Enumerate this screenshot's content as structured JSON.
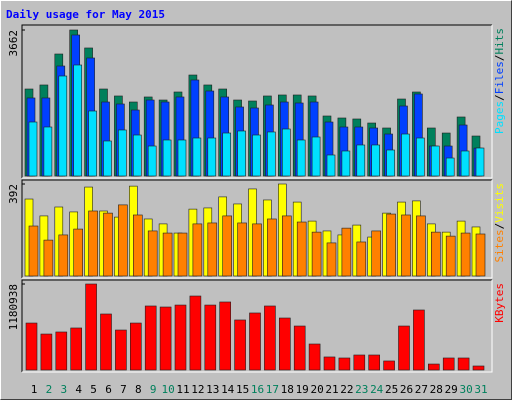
{
  "title": "Daily usage for May 2015",
  "separator": "/",
  "chart_data": [
    {
      "type": "bar",
      "ylim": [
        0,
        3662
      ],
      "yticks": [
        3662
      ],
      "series": [
        {
          "name": "Hits",
          "color": "#00805c",
          "values": [
            2182,
            2283,
            3060,
            3662,
            3211,
            2182,
            2007,
            1856,
            1982,
            1906,
            2107,
            2533,
            2283,
            2182,
            1906,
            1881,
            2007,
            2032,
            2032,
            2007,
            1505,
            1455,
            1430,
            1329,
            1204,
            1931,
            2107,
            1204,
            1078,
            1480,
            1003
          ]
        },
        {
          "name": "Files",
          "color": "#0040ff",
          "values": [
            1957,
            1957,
            2759,
            3537,
            2960,
            1856,
            1806,
            1655,
            1906,
            1856,
            1982,
            2408,
            2132,
            1982,
            1731,
            1706,
            1781,
            1856,
            1831,
            1856,
            1354,
            1229,
            1229,
            1204,
            1053,
            1756,
            2057,
            752,
            752,
            1279,
            700
          ]
        },
        {
          "name": "Pages",
          "color": "#00e0ff",
          "values": [
            1354,
            1229,
            2508,
            2784,
            1630,
            878,
            1154,
            1028,
            752,
            903,
            903,
            953,
            953,
            1078,
            1129,
            1028,
            1104,
            1179,
            903,
            978,
            527,
            627,
            778,
            778,
            652,
            1053,
            953,
            752,
            451,
            627,
            702
          ]
        }
      ]
    },
    {
      "type": "bar",
      "ylim": [
        0,
        392
      ],
      "yticks": [
        392
      ],
      "series": [
        {
          "name": "Visits",
          "color": "#ffff00",
          "values": [
            328,
            256,
            294,
            273,
            379,
            277,
            251,
            383,
            243,
            222,
            183,
            285,
            290,
            337,
            307,
            371,
            324,
            392,
            315,
            234,
            192,
            175,
            217,
            166,
            268,
            315,
            320,
            222,
            187,
            234,
            209
          ]
        },
        {
          "name": "Sites",
          "color": "#ff8000",
          "values": [
            213,
            153,
            175,
            200,
            277,
            268,
            303,
            260,
            192,
            183,
            183,
            222,
            226,
            256,
            226,
            222,
            243,
            256,
            230,
            187,
            141,
            204,
            145,
            192,
            264,
            260,
            256,
            187,
            170,
            183,
            179
          ]
        }
      ]
    },
    {
      "type": "bar",
      "ylim": [
        0,
        1180938
      ],
      "yticks": [
        1180938
      ],
      "categories": [
        "1",
        "2",
        "3",
        "4",
        "5",
        "6",
        "7",
        "8",
        "9",
        "10",
        "11",
        "12",
        "13",
        "14",
        "15",
        "16",
        "17",
        "18",
        "19",
        "20",
        "21",
        "22",
        "23",
        "24",
        "25",
        "26",
        "27",
        "28",
        "29",
        "30",
        "31"
      ],
      "category_colors": [
        "#000000",
        "#00805c",
        "#00805c",
        "#000000",
        "#000000",
        "#000000",
        "#000000",
        "#000000",
        "#00805c",
        "#00805c",
        "#000000",
        "#000000",
        "#000000",
        "#000000",
        "#000000",
        "#00805c",
        "#00805c",
        "#000000",
        "#000000",
        "#000000",
        "#000000",
        "#000000",
        "#00805c",
        "#00805c",
        "#000000",
        "#000000",
        "#000000",
        "#000000",
        "#000000",
        "#00805c",
        "#00805c"
      ],
      "series": [
        {
          "name": "KBytes",
          "color": "#ff0000",
          "values": [
            645000,
            494000,
            522000,
            577000,
            1180938,
            769000,
            549000,
            645000,
            879000,
            865000,
            892000,
            1016000,
            892000,
            934000,
            687000,
            783000,
            879000,
            714000,
            604000,
            357000,
            179000,
            165000,
            206000,
            206000,
            124000,
            604000,
            824000,
            82000,
            165000,
            165000,
            55000
          ]
        }
      ]
    }
  ]
}
